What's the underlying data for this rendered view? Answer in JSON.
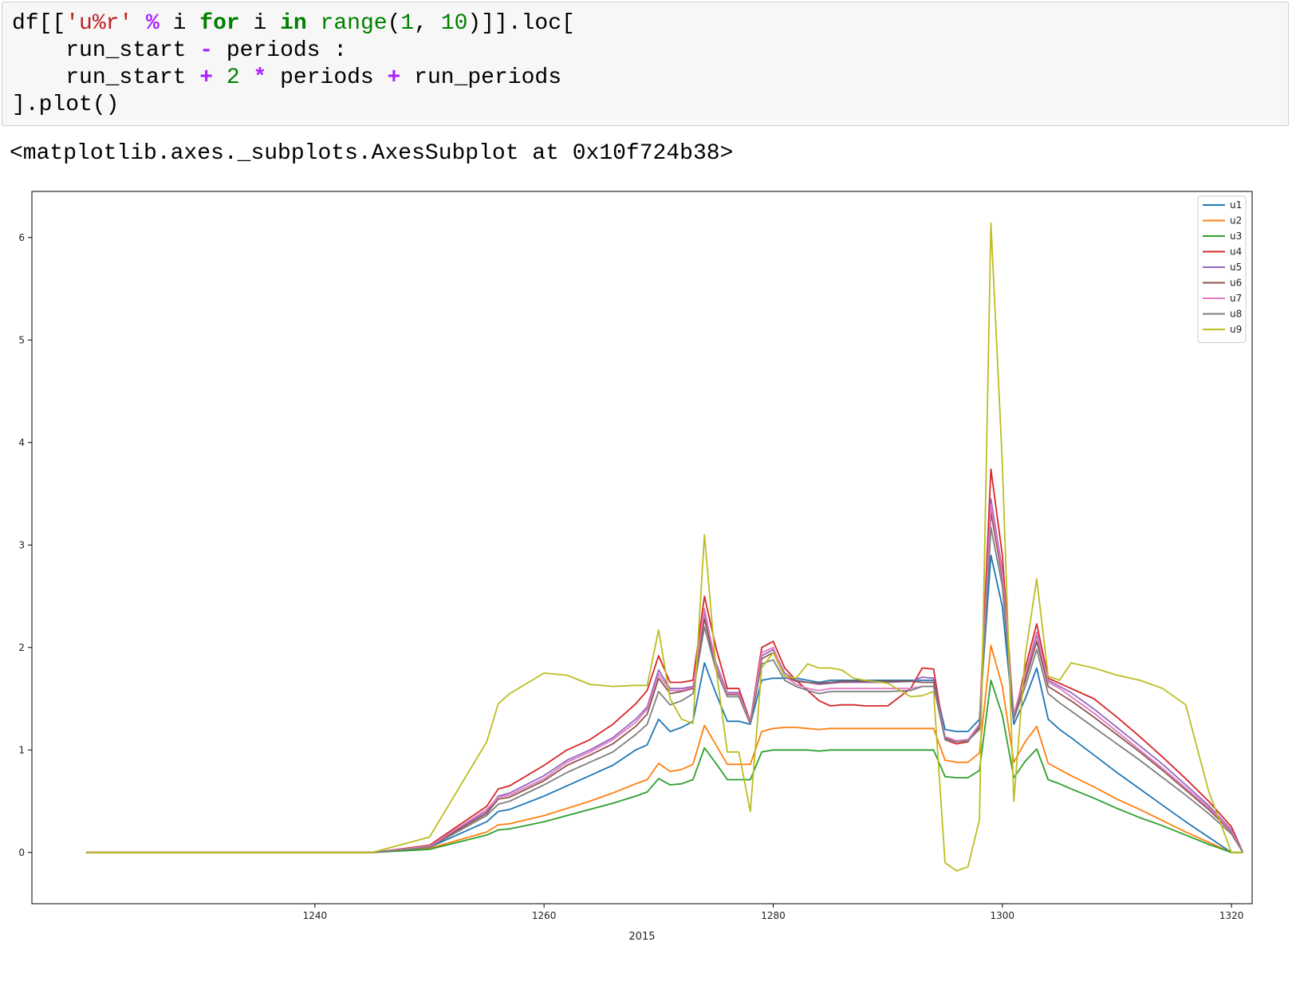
{
  "code": {
    "lines": [
      [
        {
          "t": "df[["
        },
        {
          "t": "'u%r'",
          "c": "str"
        },
        {
          "t": " "
        },
        {
          "t": "%",
          "c": "op"
        },
        {
          "t": " i "
        },
        {
          "t": "for",
          "c": "kw"
        },
        {
          "t": " i "
        },
        {
          "t": "in",
          "c": "kw"
        },
        {
          "t": " "
        },
        {
          "t": "range",
          "c": "kw-light"
        },
        {
          "t": "("
        },
        {
          "t": "1",
          "c": "num"
        },
        {
          "t": ", "
        },
        {
          "t": "10",
          "c": "num"
        },
        {
          "t": ")]].loc["
        }
      ],
      [
        {
          "t": "    run_start "
        },
        {
          "t": "-",
          "c": "op"
        },
        {
          "t": " periods :"
        }
      ],
      [
        {
          "t": "    run_start "
        },
        {
          "t": "+",
          "c": "op"
        },
        {
          "t": " "
        },
        {
          "t": "2",
          "c": "num"
        },
        {
          "t": " "
        },
        {
          "t": "*",
          "c": "op"
        },
        {
          "t": " periods "
        },
        {
          "t": "+",
          "c": "op"
        },
        {
          "t": " run_periods"
        }
      ],
      [
        {
          "t": "].plot()"
        }
      ]
    ]
  },
  "output": {
    "text": "<matplotlib.axes._subplots.AxesSubplot at 0x10f724b38>"
  },
  "chart_data": {
    "type": "line",
    "title": "",
    "xlabel": "2015",
    "ylabel": "",
    "xlim": [
      1215.3,
      1321.8
    ],
    "ylim": [
      -0.5,
      6.45
    ],
    "xticks": [
      1240,
      1260,
      1280,
      1300,
      1320
    ],
    "yticks": [
      0,
      1,
      2,
      3,
      4,
      5,
      6
    ],
    "grid": false,
    "legend_position": "top-right",
    "x": [
      1220,
      1235,
      1245,
      1250,
      1255,
      1256,
      1257,
      1260,
      1262,
      1264,
      1266,
      1268,
      1269,
      1270,
      1271,
      1272,
      1273,
      1274,
      1275,
      1276,
      1277,
      1278,
      1279,
      1280,
      1281,
      1282,
      1283,
      1284,
      1285,
      1286,
      1287,
      1288,
      1290,
      1292,
      1293,
      1294,
      1295,
      1296,
      1297,
      1298,
      1299,
      1300,
      1301,
      1302,
      1303,
      1304,
      1305,
      1306,
      1308,
      1310,
      1312,
      1314,
      1316,
      1318,
      1320,
      1321
    ],
    "series": [
      {
        "name": "u1",
        "color": "#1f77b4",
        "values": [
          0,
          0,
          0,
          0.05,
          0.3,
          0.4,
          0.42,
          0.55,
          0.65,
          0.75,
          0.85,
          1.0,
          1.05,
          1.3,
          1.18,
          1.22,
          1.28,
          1.85,
          1.55,
          1.28,
          1.28,
          1.25,
          1.68,
          1.7,
          1.7,
          1.7,
          1.68,
          1.66,
          1.68,
          1.68,
          1.68,
          1.68,
          1.68,
          1.68,
          1.68,
          1.68,
          1.2,
          1.18,
          1.18,
          1.3,
          2.9,
          2.4,
          1.25,
          1.5,
          1.8,
          1.3,
          1.2,
          1.12,
          0.95,
          0.78,
          0.62,
          0.46,
          0.3,
          0.15,
          0,
          0
        ]
      },
      {
        "name": "u2",
        "color": "#ff7f0e",
        "values": [
          0,
          0,
          0,
          0.04,
          0.2,
          0.27,
          0.28,
          0.36,
          0.43,
          0.5,
          0.58,
          0.67,
          0.71,
          0.87,
          0.79,
          0.81,
          0.86,
          1.24,
          1.05,
          0.86,
          0.86,
          0.86,
          1.18,
          1.21,
          1.22,
          1.22,
          1.21,
          1.2,
          1.21,
          1.21,
          1.21,
          1.21,
          1.21,
          1.21,
          1.21,
          1.21,
          0.9,
          0.88,
          0.88,
          0.97,
          2.02,
          1.62,
          0.88,
          1.08,
          1.23,
          0.87,
          0.81,
          0.75,
          0.64,
          0.52,
          0.42,
          0.31,
          0.2,
          0.1,
          0,
          0
        ]
      },
      {
        "name": "u3",
        "color": "#2ca02c",
        "values": [
          0,
          0,
          0,
          0.03,
          0.17,
          0.22,
          0.23,
          0.3,
          0.36,
          0.42,
          0.48,
          0.55,
          0.59,
          0.72,
          0.66,
          0.67,
          0.71,
          1.02,
          0.87,
          0.71,
          0.71,
          0.71,
          0.98,
          1.0,
          1.0,
          1.0,
          1.0,
          0.99,
          1.0,
          1.0,
          1.0,
          1.0,
          1.0,
          1.0,
          1.0,
          1.0,
          0.74,
          0.73,
          0.73,
          0.8,
          1.68,
          1.34,
          0.73,
          0.89,
          1.01,
          0.71,
          0.67,
          0.62,
          0.53,
          0.43,
          0.34,
          0.26,
          0.17,
          0.08,
          0,
          0
        ]
      },
      {
        "name": "u4",
        "color": "#d62728",
        "values": [
          0,
          0,
          0,
          0.07,
          0.45,
          0.62,
          0.65,
          0.85,
          1.0,
          1.1,
          1.25,
          1.45,
          1.58,
          1.92,
          1.66,
          1.66,
          1.68,
          2.5,
          2.0,
          1.6,
          1.6,
          1.28,
          2.0,
          2.06,
          1.8,
          1.68,
          1.58,
          1.48,
          1.43,
          1.44,
          1.44,
          1.43,
          1.43,
          1.6,
          1.8,
          1.79,
          1.1,
          1.06,
          1.08,
          1.25,
          3.74,
          2.9,
          1.3,
          1.8,
          2.23,
          1.7,
          1.65,
          1.6,
          1.5,
          1.32,
          1.13,
          0.93,
          0.72,
          0.5,
          0.25,
          0
        ]
      },
      {
        "name": "u5",
        "color": "#9467bd",
        "values": [
          0,
          0,
          0,
          0.06,
          0.4,
          0.55,
          0.58,
          0.75,
          0.9,
          1.0,
          1.12,
          1.3,
          1.42,
          1.78,
          1.6,
          1.6,
          1.62,
          2.34,
          1.85,
          1.56,
          1.56,
          1.27,
          1.92,
          1.98,
          1.75,
          1.68,
          1.66,
          1.64,
          1.65,
          1.66,
          1.66,
          1.66,
          1.66,
          1.67,
          1.71,
          1.7,
          1.12,
          1.08,
          1.09,
          1.24,
          3.45,
          2.75,
          1.32,
          1.72,
          2.12,
          1.68,
          1.62,
          1.56,
          1.4,
          1.22,
          1.04,
          0.86,
          0.66,
          0.46,
          0.22,
          0
        ]
      },
      {
        "name": "u6",
        "color": "#8c564b",
        "values": [
          0,
          0,
          0,
          0.06,
          0.38,
          0.52,
          0.54,
          0.7,
          0.85,
          0.95,
          1.06,
          1.23,
          1.35,
          1.7,
          1.55,
          1.57,
          1.6,
          2.28,
          1.8,
          1.54,
          1.54,
          1.26,
          1.89,
          1.95,
          1.72,
          1.67,
          1.66,
          1.65,
          1.66,
          1.67,
          1.67,
          1.67,
          1.67,
          1.67,
          1.66,
          1.66,
          1.11,
          1.09,
          1.1,
          1.22,
          3.32,
          2.68,
          1.32,
          1.68,
          2.06,
          1.62,
          1.55,
          1.48,
          1.32,
          1.15,
          0.98,
          0.8,
          0.61,
          0.42,
          0.2,
          0
        ]
      },
      {
        "name": "u7",
        "color": "#e377c2",
        "values": [
          0,
          0,
          0,
          0.06,
          0.42,
          0.54,
          0.56,
          0.72,
          0.88,
          0.98,
          1.1,
          1.27,
          1.4,
          1.74,
          1.58,
          1.58,
          1.61,
          2.38,
          1.82,
          1.55,
          1.55,
          1.27,
          1.95,
          2.0,
          1.72,
          1.64,
          1.6,
          1.58,
          1.6,
          1.6,
          1.6,
          1.6,
          1.6,
          1.6,
          1.62,
          1.62,
          1.13,
          1.09,
          1.1,
          1.25,
          3.4,
          2.72,
          1.35,
          1.74,
          2.15,
          1.66,
          1.6,
          1.52,
          1.36,
          1.18,
          1.0,
          0.82,
          0.63,
          0.44,
          0.21,
          0
        ]
      },
      {
        "name": "u8",
        "color": "#7f7f7f",
        "values": [
          0,
          0,
          0,
          0.05,
          0.36,
          0.47,
          0.5,
          0.66,
          0.78,
          0.88,
          0.98,
          1.15,
          1.25,
          1.57,
          1.44,
          1.48,
          1.55,
          2.2,
          1.78,
          1.52,
          1.52,
          1.25,
          1.84,
          1.88,
          1.68,
          1.62,
          1.58,
          1.55,
          1.57,
          1.57,
          1.57,
          1.57,
          1.57,
          1.58,
          1.62,
          1.62,
          1.1,
          1.08,
          1.09,
          1.2,
          3.17,
          2.6,
          1.3,
          1.62,
          1.98,
          1.55,
          1.46,
          1.38,
          1.22,
          1.06,
          0.9,
          0.73,
          0.56,
          0.38,
          0.18,
          0
        ]
      },
      {
        "name": "u9",
        "color": "#bcbd22",
        "values": [
          0,
          0,
          0,
          0.15,
          1.08,
          1.45,
          1.55,
          1.75,
          1.73,
          1.64,
          1.62,
          1.63,
          1.63,
          2.17,
          1.5,
          1.3,
          1.26,
          3.1,
          1.8,
          0.98,
          0.98,
          0.4,
          1.8,
          1.95,
          1.72,
          1.7,
          1.84,
          1.8,
          1.8,
          1.78,
          1.7,
          1.68,
          1.65,
          1.52,
          1.53,
          1.57,
          -0.1,
          -0.18,
          -0.14,
          0.32,
          6.14,
          3.8,
          0.5,
          1.92,
          2.67,
          1.72,
          1.68,
          1.85,
          1.8,
          1.73,
          1.68,
          1.6,
          1.44,
          0.6,
          0,
          0
        ]
      }
    ]
  }
}
